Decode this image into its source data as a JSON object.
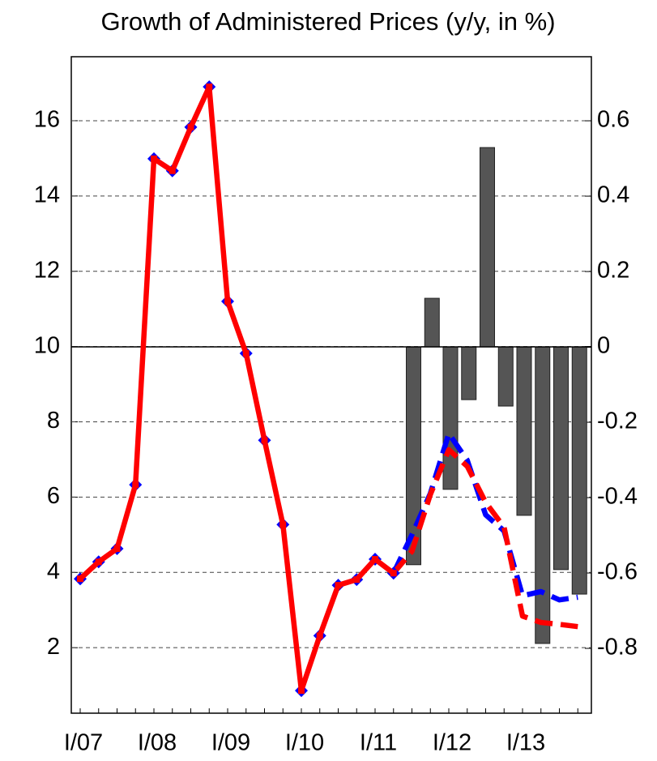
{
  "chart_data": {
    "type": "line",
    "title": "Growth of Administered Prices (y/y, in %)",
    "categories": [
      "I/07",
      null,
      null,
      null,
      "I/08",
      null,
      null,
      null,
      "I/09",
      null,
      null,
      null,
      "I/10",
      null,
      null,
      null,
      "I/11",
      null,
      null,
      null,
      "I/12",
      null,
      null,
      null,
      "I/13",
      null,
      null,
      null
    ],
    "ylim": [
      0.26,
      17.7
    ],
    "yticks": [
      2,
      4,
      6,
      8,
      10,
      12,
      14,
      16
    ],
    "y2lim": [
      -0.972,
      0.77
    ],
    "y2ticks": [
      0.6,
      0.4,
      0.2,
      0,
      -0.2,
      -0.4,
      -0.6,
      -0.8
    ],
    "grid": true,
    "series": [
      {
        "type": "bar",
        "axis": "y2",
        "color": "#555555",
        "values": [
          null,
          null,
          null,
          null,
          null,
          null,
          null,
          null,
          null,
          null,
          null,
          null,
          null,
          null,
          null,
          null,
          null,
          null,
          -0.578,
          0.129,
          -0.378,
          -0.14,
          0.529,
          -0.157,
          -0.447,
          -0.787,
          -0.591,
          -0.656
        ]
      },
      {
        "color": "#0000ff",
        "style": "dashed",
        "values": [
          null,
          null,
          null,
          null,
          null,
          null,
          null,
          null,
          null,
          null,
          null,
          null,
          null,
          null,
          null,
          null,
          null,
          3.98,
          5.0,
          6.1,
          7.69,
          6.98,
          5.53,
          5.1,
          3.38,
          3.49,
          3.27,
          3.34
        ]
      },
      {
        "color": "#ff0000",
        "style": "dashed",
        "values": [
          null,
          null,
          null,
          null,
          null,
          null,
          null,
          null,
          null,
          null,
          null,
          null,
          null,
          null,
          null,
          null,
          null,
          3.98,
          4.56,
          6.07,
          7.26,
          6.82,
          5.86,
          5.2,
          2.84,
          2.67,
          2.62,
          2.56
        ]
      },
      {
        "color": "#ff0000",
        "style": "solid",
        "marker_color": "#0000ff",
        "values": [
          3.83,
          4.28,
          4.63,
          6.33,
          14.99,
          14.67,
          15.83,
          16.9,
          11.2,
          9.82,
          7.51,
          5.27,
          0.86,
          2.32,
          3.66,
          3.81,
          4.35,
          3.98,
          null,
          null,
          null,
          null,
          null,
          null,
          null,
          null,
          null,
          null
        ]
      }
    ]
  }
}
